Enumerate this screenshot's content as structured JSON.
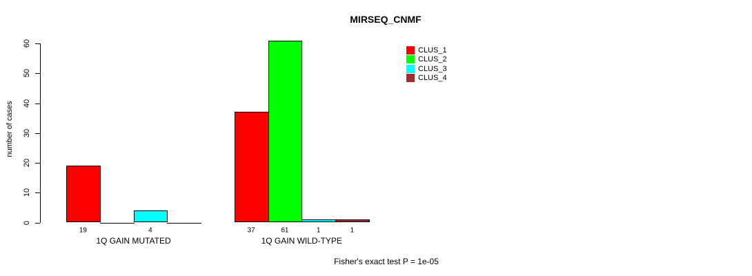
{
  "chart_data": {
    "type": "bar",
    "title": "MIRSEQ_CNMF",
    "ylabel": "number of cases",
    "xlabel": "",
    "ylim": [
      0,
      60
    ],
    "yticks": [
      0,
      10,
      20,
      30,
      40,
      50,
      60
    ],
    "grid": false,
    "legend_position": "top-right",
    "categories": [
      "1Q GAIN MUTATED",
      "1Q GAIN WILD-TYPE"
    ],
    "series": [
      {
        "name": "CLUS_1",
        "color": "#ff0000",
        "values": [
          19,
          37
        ]
      },
      {
        "name": "CLUS_2",
        "color": "#00ff00",
        "values": [
          0,
          61
        ]
      },
      {
        "name": "CLUS_3",
        "color": "#00ffff",
        "values": [
          4,
          1
        ]
      },
      {
        "name": "CLUS_4",
        "color": "#a52a2a",
        "values": [
          0,
          1
        ]
      }
    ],
    "bar_value_labels_shown": [
      "19",
      "4",
      "37",
      "61",
      "1",
      "1"
    ],
    "footer": "Fisher's exact test P = 1e-05"
  }
}
